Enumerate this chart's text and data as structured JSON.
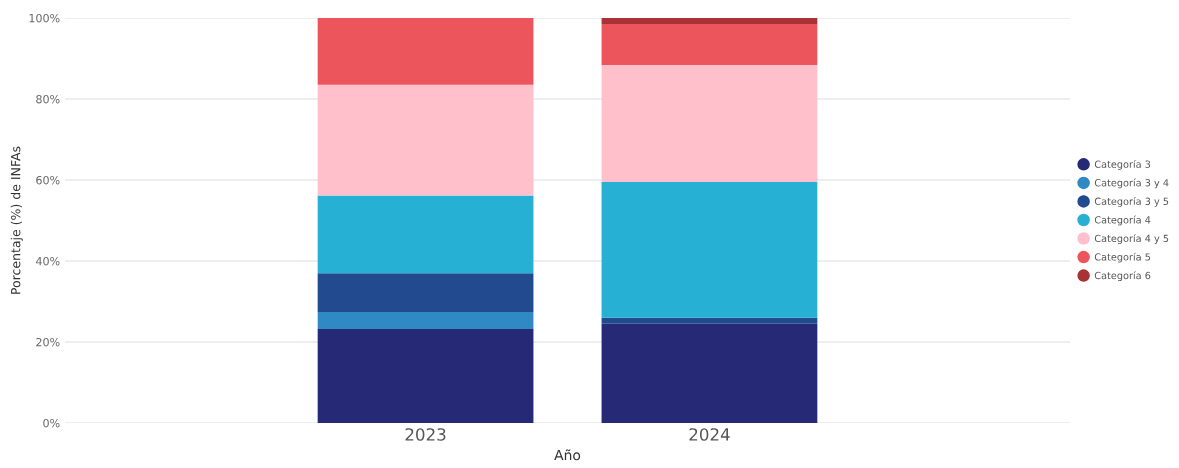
{
  "chart_data": {
    "type": "bar",
    "stacked": true,
    "xlabel": "Año",
    "ylabel": "Porcentaje (%) de INFAs",
    "categories": [
      "2023",
      "2024"
    ],
    "ylim": [
      0,
      100
    ],
    "yticks": [
      {
        "value": 0,
        "label": "0%"
      },
      {
        "value": 20,
        "label": "20%"
      },
      {
        "value": 40,
        "label": "40%"
      },
      {
        "value": 60,
        "label": "60%"
      },
      {
        "value": 80,
        "label": "80%"
      },
      {
        "value": 100,
        "label": "100%"
      }
    ],
    "grid": "y",
    "legend": "right",
    "series": [
      {
        "name": "Categoría 3",
        "color": "#262a76",
        "values": [
          23.2,
          24.5
        ]
      },
      {
        "name": "Categoría 3 y 4",
        "color": "#2f8ac4",
        "values": [
          4.2,
          0
        ]
      },
      {
        "name": "Categoría 3 y 5",
        "color": "#224a8f",
        "values": [
          9.6,
          1.5
        ]
      },
      {
        "name": "Categoría 4",
        "color": "#26b0d4",
        "values": [
          19.2,
          33.5
        ]
      },
      {
        "name": "Categoría 4 y 5",
        "color": "#ffc0cc",
        "values": [
          27.3,
          28.9
        ]
      },
      {
        "name": "Categoría 5",
        "color": "#eb555b",
        "values": [
          16.5,
          10.1
        ]
      },
      {
        "name": "Categoría 6",
        "color": "#a83234",
        "values": [
          0,
          1.5
        ]
      }
    ]
  }
}
